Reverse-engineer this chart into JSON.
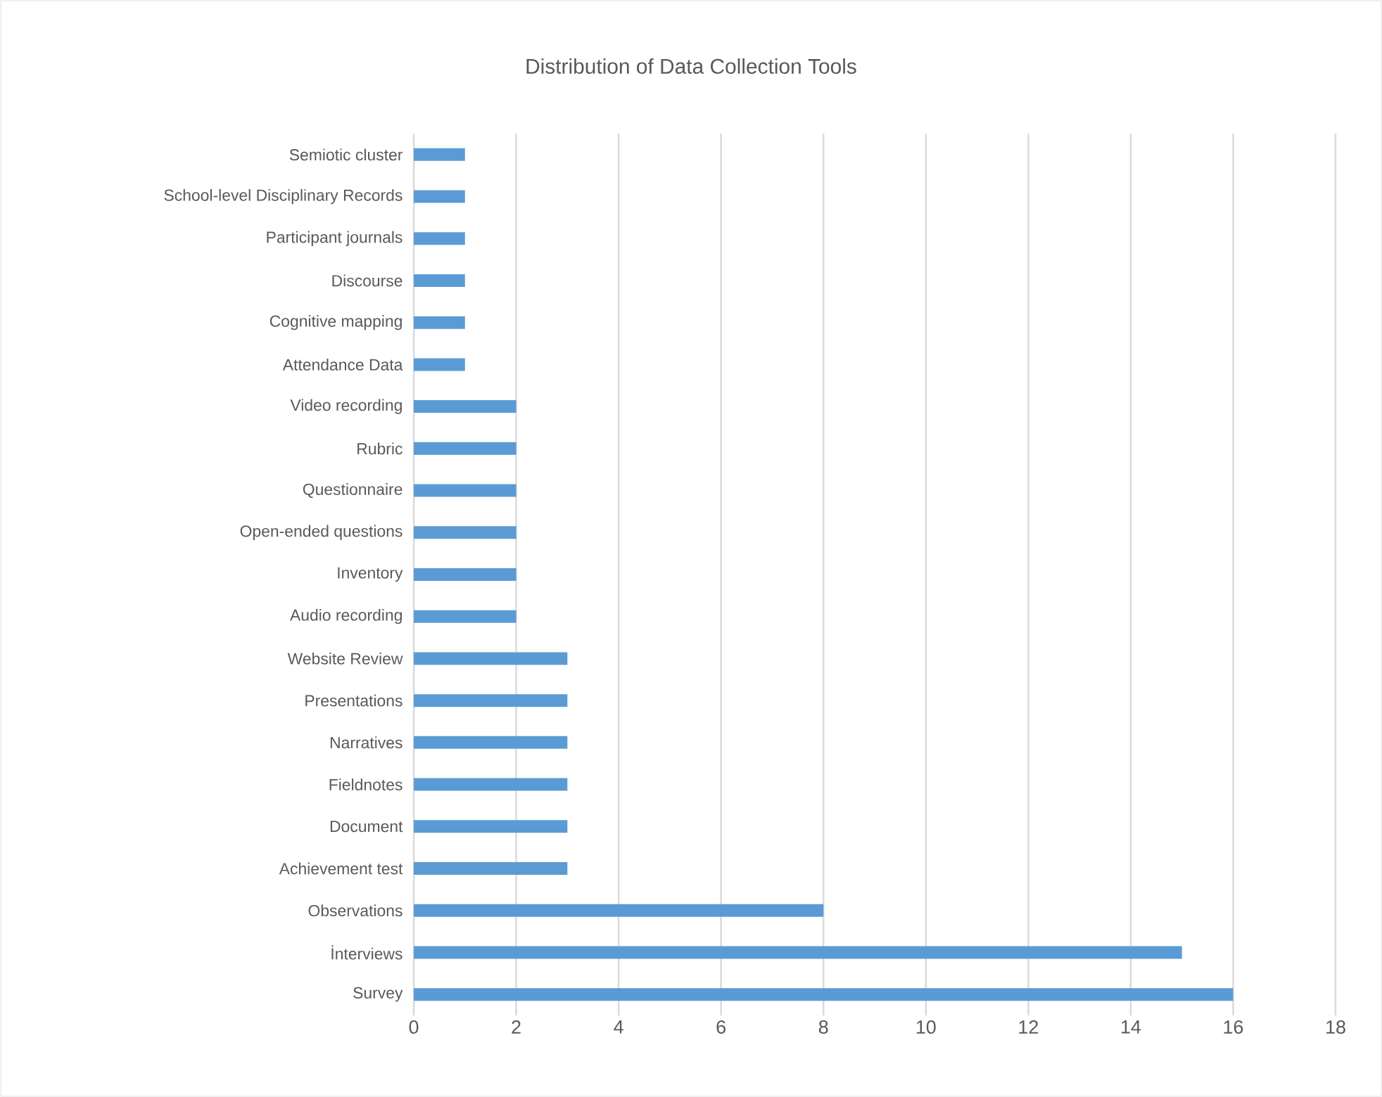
{
  "chart_data": {
    "type": "bar",
    "orientation": "horizontal",
    "title": "Distribution of Data Collection Tools",
    "categories": [
      "Semiotic cluster",
      "School-level Disciplinary Records",
      "Participant journals",
      "Discourse",
      "Cognitive mapping",
      "Attendance Data",
      "Video recording",
      "Rubric",
      "Questionnaire",
      "Open-ended questions",
      "Inventory",
      "Audio recording",
      "Website Review",
      "Presentations",
      "Narratives",
      "Fieldnotes",
      "Document",
      "Achievement test",
      "Observations",
      "İnterviews",
      "Survey"
    ],
    "values": [
      1,
      1,
      1,
      1,
      1,
      1,
      2,
      2,
      2,
      2,
      2,
      2,
      3,
      3,
      3,
      3,
      3,
      3,
      8,
      15,
      16
    ],
    "color": "#5b9bd5",
    "xlim": [
      0,
      18
    ],
    "xticks": [
      0,
      2,
      4,
      6,
      8,
      10,
      12,
      14,
      16,
      18
    ],
    "grid": "x"
  }
}
